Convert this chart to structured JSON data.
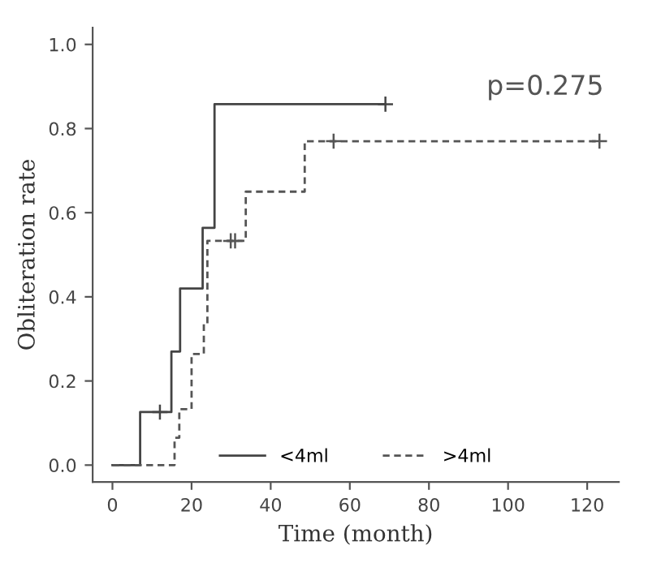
{
  "chart_data": {
    "type": "step",
    "xlabel": "Time (month)",
    "ylabel": "Obliteration rate",
    "xlim": [
      -5,
      128
    ],
    "ylim": [
      -0.04,
      1.04
    ],
    "xticks": [
      0,
      20,
      40,
      60,
      80,
      100,
      120
    ],
    "yticks": [
      {
        "value": 0,
        "label": "0.0"
      },
      0.2,
      0.4,
      0.6,
      0.8,
      {
        "value": 1,
        "label": "1.0"
      }
    ],
    "grid": false,
    "legend": "bottom",
    "annotations": [
      "p=0.275"
    ],
    "series": [
      {
        "name": "<4ml",
        "color": "#444444",
        "line_style": "solid",
        "x": [
          0,
          7,
          14.9,
          17.1,
          22.8,
          25.8,
          69
        ],
        "values": [
          0,
          0.126,
          0.27,
          0.42,
          0.564,
          0.858,
          0.858
        ]
      },
      {
        "name": ">4ml",
        "color": "#555555",
        "line_style": "dashed",
        "x": [
          0,
          15.7,
          16.9,
          20,
          23.1,
          24,
          33.7,
          48.6,
          123.1
        ],
        "values": [
          0,
          0.065,
          0.133,
          0.264,
          0.335,
          0.533,
          0.65,
          0.77,
          0.77
        ]
      },
      {
        "type": "scatter",
        "marker": "cross",
        "color": "#444444",
        "x": [
          12,
          69
        ],
        "values": [
          0.126,
          0.858
        ]
      },
      {
        "type": "scatter",
        "marker": "cross",
        "color": "#555555",
        "x": [
          29.9,
          31,
          55.9,
          123.1
        ],
        "values": [
          0.533,
          0.533,
          0.77,
          0.77
        ]
      }
    ]
  }
}
